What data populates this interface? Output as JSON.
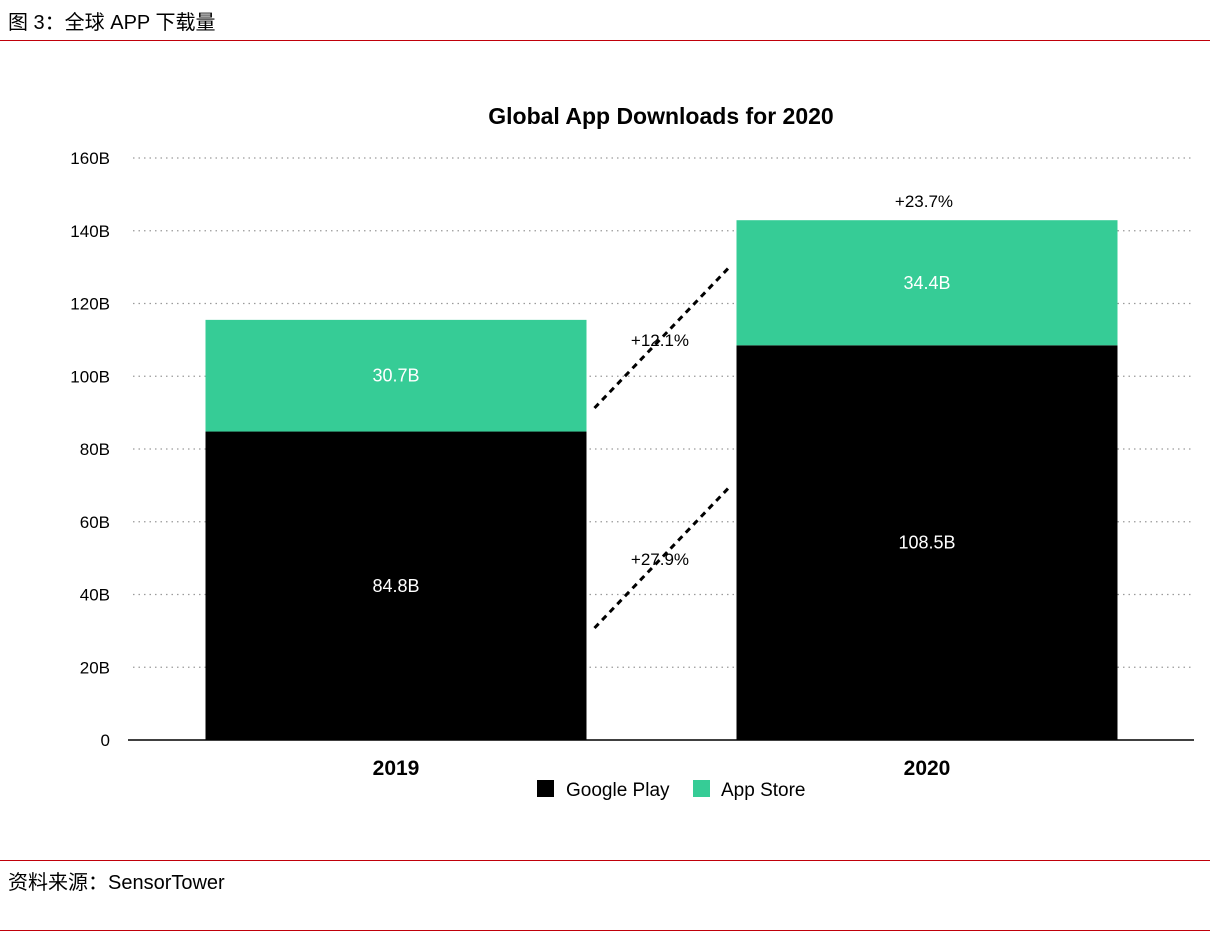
{
  "figure": {
    "caption": "图 3：全球 APP 下载量",
    "source": "资料来源：SensorTower"
  },
  "colors": {
    "google_play": "#000000",
    "app_store": "#36cc96",
    "rule": "#c0000a"
  },
  "chart_data": {
    "type": "bar",
    "stacked": true,
    "title": "Global App Downloads for 2020",
    "categories": [
      "2019",
      "2020"
    ],
    "series": [
      {
        "name": "Google Play",
        "values": [
          84.8,
          108.5
        ],
        "labels": [
          "84.8B",
          "108.5B"
        ]
      },
      {
        "name": "App Store",
        "values": [
          30.7,
          34.4
        ],
        "labels": [
          "30.7B",
          "34.4B"
        ]
      }
    ],
    "ylim": [
      0,
      160
    ],
    "yticks": [
      {
        "value": 0,
        "label": "0"
      },
      {
        "value": 20,
        "label": "20B"
      },
      {
        "value": 40,
        "label": "40B"
      },
      {
        "value": 60,
        "label": "60B"
      },
      {
        "value": 80,
        "label": "80B"
      },
      {
        "value": 100,
        "label": "100B"
      },
      {
        "value": 120,
        "label": "120B"
      },
      {
        "value": 140,
        "label": "140B"
      },
      {
        "value": 160,
        "label": "160B"
      }
    ],
    "grid": true,
    "legend_position": "bottom",
    "annotations": {
      "total_growth": "+23.7%",
      "app_store_growth": "+12.1%",
      "google_play_growth": "+27.9%"
    }
  }
}
